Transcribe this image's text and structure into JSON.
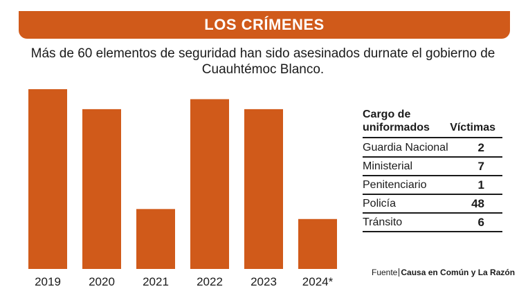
{
  "header": {
    "title": "LOS CRÍMENES",
    "subtitle": "Más de 60 elementos de seguridad han sido asesinados durnate el gobierno de Cuauhtémoc Blanco."
  },
  "colors": {
    "accent": "#d05a1a",
    "text": "#1a1a1a",
    "background": "#ffffff"
  },
  "chart_data": {
    "type": "bar",
    "title": "",
    "xlabel": "",
    "ylabel": "",
    "categories": [
      "2019",
      "2020",
      "2021",
      "2022",
      "2023",
      "2024*"
    ],
    "values": [
      18,
      16,
      6,
      17,
      16,
      5
    ],
    "ylim": [
      0,
      20
    ],
    "grid": false,
    "legend": "none"
  },
  "table": {
    "header_cargo": "Cargo de uniformados",
    "header_victimas": "Víctimas",
    "rows": [
      {
        "cargo": "Guardia Nacional",
        "victimas": "2"
      },
      {
        "cargo": "Ministerial",
        "victimas": "7"
      },
      {
        "cargo": "Penitenciario",
        "victimas": "1"
      },
      {
        "cargo": "Policía",
        "victimas": "48"
      },
      {
        "cargo": "Tránsito",
        "victimas": "6"
      }
    ]
  },
  "source": {
    "label": "Fuente",
    "text": "Causa en Común y La Razón"
  }
}
